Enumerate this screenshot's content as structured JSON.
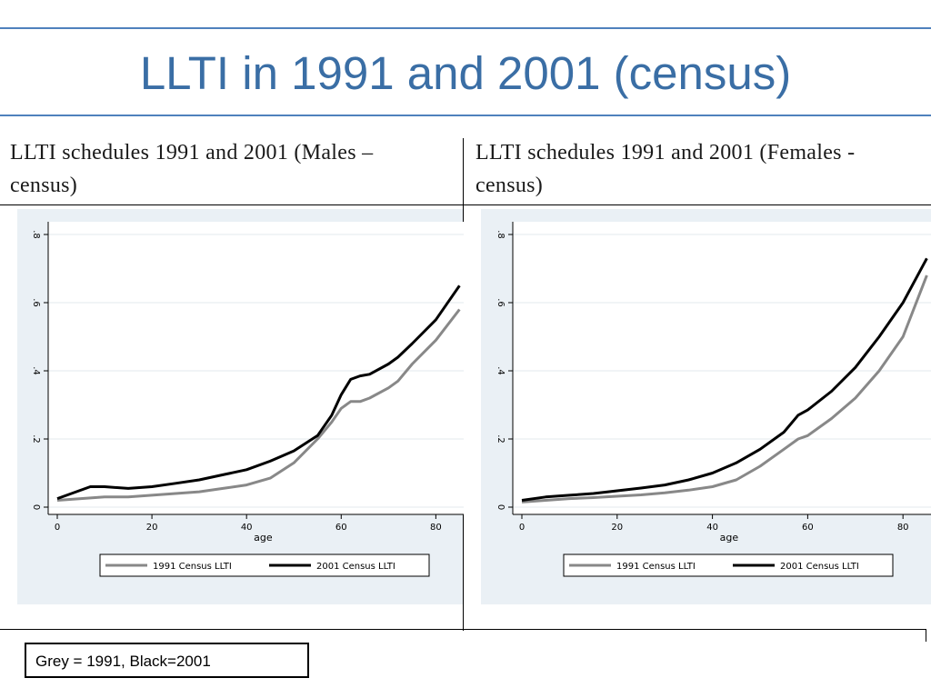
{
  "slide": {
    "title": "LLTI in 1991 and 2001 (census)",
    "accent_color": "#4f81bd",
    "title_color": "#3a6ea5"
  },
  "panels": [
    {
      "title_line1": "LLTI schedules 1991 and 2001 (Males –",
      "title_line2": "census)"
    },
    {
      "title_line1": "LLTI schedules 1991 and 2001 (Females -",
      "title_line2": "census)"
    }
  ],
  "note": {
    "text": "Grey = 1991, Black=2001"
  },
  "chart_data": [
    {
      "type": "line",
      "title": "LLTI schedules 1991 and 2001 (Males – census)",
      "xlabel": "age",
      "ylabel": "",
      "x_ticks": [
        0,
        20,
        40,
        60,
        80
      ],
      "y_ticks": [
        0,
        0.2,
        0.4,
        0.6,
        0.8
      ],
      "y_tick_labels": [
        "0",
        ".2",
        ".4",
        ".6",
        ".8"
      ],
      "xlim": [
        0,
        85
      ],
      "ylim": [
        0,
        0.8
      ],
      "grid": true,
      "legend": "bottom",
      "series": [
        {
          "name": "1991 Census LLTI",
          "color": "#888888",
          "x": [
            0,
            5,
            10,
            15,
            20,
            25,
            30,
            35,
            40,
            45,
            50,
            55,
            58,
            60,
            62,
            64,
            66,
            70,
            72,
            75,
            80,
            85
          ],
          "y": [
            0.02,
            0.025,
            0.03,
            0.03,
            0.035,
            0.04,
            0.045,
            0.055,
            0.065,
            0.085,
            0.13,
            0.2,
            0.25,
            0.29,
            0.31,
            0.31,
            0.32,
            0.35,
            0.37,
            0.42,
            0.49,
            0.58
          ]
        },
        {
          "name": "2001 Census LLTI",
          "color": "#000000",
          "x": [
            0,
            3,
            7,
            10,
            15,
            20,
            25,
            30,
            35,
            40,
            45,
            50,
            55,
            58,
            60,
            62,
            64,
            66,
            70,
            72,
            75,
            80,
            85
          ],
          "y": [
            0.025,
            0.04,
            0.06,
            0.06,
            0.055,
            0.06,
            0.07,
            0.08,
            0.095,
            0.11,
            0.135,
            0.165,
            0.21,
            0.27,
            0.33,
            0.375,
            0.385,
            0.39,
            0.42,
            0.44,
            0.48,
            0.55,
            0.65
          ]
        }
      ]
    },
    {
      "type": "line",
      "title": "LLTI schedules 1991 and 2001 (Females - census)",
      "xlabel": "age",
      "ylabel": "",
      "x_ticks": [
        0,
        20,
        40,
        60,
        80
      ],
      "y_ticks": [
        0,
        0.2,
        0.4,
        0.6,
        0.8
      ],
      "y_tick_labels": [
        "0",
        ".2",
        ".4",
        ".6",
        ".8"
      ],
      "xlim": [
        0,
        85
      ],
      "ylim": [
        0,
        0.8
      ],
      "grid": true,
      "legend": "bottom",
      "series": [
        {
          "name": "1991 Census LLTI",
          "color": "#888888",
          "x": [
            0,
            5,
            10,
            15,
            20,
            25,
            30,
            35,
            40,
            45,
            50,
            55,
            58,
            60,
            65,
            70,
            75,
            80,
            85
          ],
          "y": [
            0.015,
            0.02,
            0.025,
            0.028,
            0.032,
            0.036,
            0.042,
            0.05,
            0.06,
            0.08,
            0.12,
            0.17,
            0.2,
            0.21,
            0.26,
            0.32,
            0.4,
            0.5,
            0.68
          ]
        },
        {
          "name": "2001 Census LLTI",
          "color": "#000000",
          "x": [
            0,
            5,
            10,
            15,
            20,
            25,
            30,
            35,
            40,
            45,
            50,
            55,
            58,
            60,
            65,
            70,
            75,
            80,
            85
          ],
          "y": [
            0.02,
            0.03,
            0.035,
            0.04,
            0.048,
            0.056,
            0.065,
            0.08,
            0.1,
            0.13,
            0.17,
            0.22,
            0.27,
            0.285,
            0.34,
            0.41,
            0.5,
            0.6,
            0.73
          ]
        }
      ]
    }
  ]
}
